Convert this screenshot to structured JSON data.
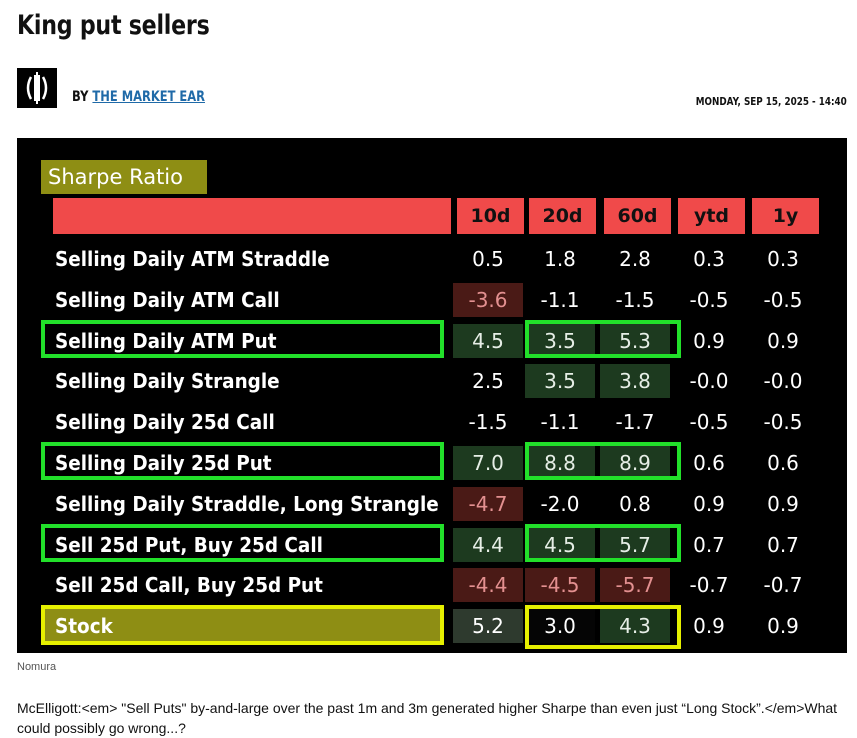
{
  "article": {
    "title": "King put sellers",
    "by_prefix": "BY ",
    "author": "THE MARKET EAR",
    "date": "MONDAY, SEP 15, 2025 - 14:40",
    "caption": "Nomura",
    "body_text": "McElligott:<em> \"Sell Puts\" by-and-large over the past 1m and 3m generated higher Sharpe than even just “Long Stock”.</em>What could possibly go wrong...?"
  },
  "table": {
    "title": "Sharpe Ratio",
    "columns": [
      "10d",
      "20d",
      "60d",
      "ytd",
      "1y"
    ],
    "rows": [
      {
        "label": "Selling Daily ATM Straddle",
        "values": [
          "0.5",
          "1.8",
          "2.8",
          "0.3",
          "0.3"
        ]
      },
      {
        "label": "Selling Daily ATM Call",
        "values": [
          "-3.6",
          "-1.1",
          "-1.5",
          "-0.5",
          "-0.5"
        ]
      },
      {
        "label": "Selling Daily ATM Put",
        "values": [
          "4.5",
          "3.5",
          "5.3",
          "0.9",
          "0.9"
        ]
      },
      {
        "label": "Selling Daily Strangle",
        "values": [
          "2.5",
          "3.5",
          "3.8",
          "-0.0",
          "-0.0"
        ]
      },
      {
        "label": "Selling Daily 25d Call",
        "values": [
          "-1.5",
          "-1.1",
          "-1.7",
          "-0.5",
          "-0.5"
        ]
      },
      {
        "label": "Selling Daily 25d Put",
        "values": [
          "7.0",
          "8.8",
          "8.9",
          "0.6",
          "0.6"
        ]
      },
      {
        "label": "Selling Daily Straddle, Long Strangle",
        "values": [
          "-4.7",
          "-2.0",
          "0.8",
          "0.9",
          "0.9"
        ]
      },
      {
        "label": "Sell 25d Put, Buy 25d Call",
        "values": [
          "4.4",
          "4.5",
          "5.7",
          "0.7",
          "0.7"
        ]
      },
      {
        "label": "Sell 25d Call, Buy 25d Put",
        "values": [
          "-4.4",
          "-4.5",
          "-5.7",
          "-0.7",
          "-0.7"
        ]
      },
      {
        "label": "Stock",
        "values": [
          "5.2",
          "3.0",
          "4.3",
          "0.9",
          "0.9"
        ]
      }
    ]
  },
  "colors": {
    "header_red": "#f04a4a",
    "highlight_green": "#22e02a",
    "highlight_yellow": "#e6f000",
    "title_olive": "#8e8e14",
    "link_blue": "#1f6aa8"
  }
}
